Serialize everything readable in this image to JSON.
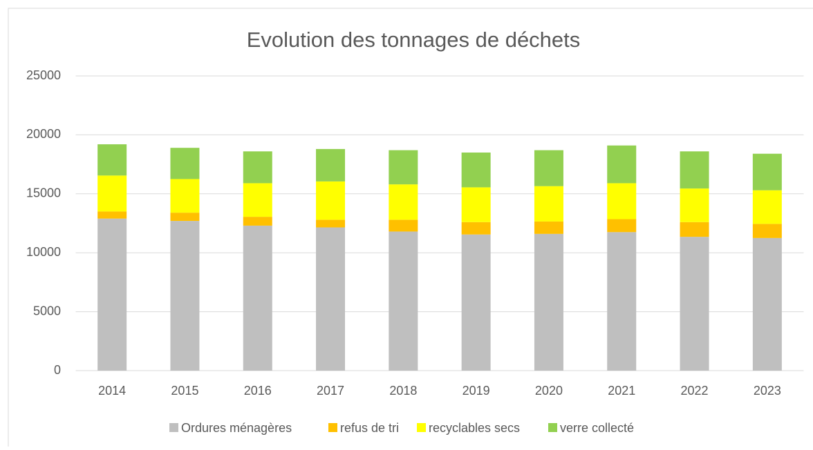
{
  "chart_data": {
    "type": "stacked_bar",
    "title": "Evolution des tonnages de déchets",
    "categories": [
      "2014",
      "2015",
      "2016",
      "2017",
      "2018",
      "2019",
      "2020",
      "2021",
      "2022",
      "2023"
    ],
    "series": [
      {
        "name": "Ordures ménagères",
        "color": "#bfbfbf",
        "values": [
          12900,
          12700,
          12300,
          12150,
          11800,
          11550,
          11600,
          11750,
          11350,
          11250
        ]
      },
      {
        "name": "refus de tri",
        "color": "#ffc000",
        "values": [
          600,
          700,
          750,
          650,
          1000,
          1050,
          1050,
          1100,
          1250,
          1200
        ]
      },
      {
        "name": "recyclables secs",
        "color": "#ffff00",
        "values": [
          3050,
          2850,
          2850,
          3250,
          3000,
          2950,
          3000,
          3050,
          2850,
          2850
        ]
      },
      {
        "name": "verre collecté",
        "color": "#92d050",
        "values": [
          2650,
          2650,
          2700,
          2750,
          2900,
          2950,
          3050,
          3200,
          3150,
          3100
        ]
      }
    ],
    "ylim": [
      0,
      25000
    ],
    "yticks": [
      0,
      5000,
      10000,
      15000,
      20000,
      25000
    ],
    "grid": true,
    "legend": "bottom"
  }
}
